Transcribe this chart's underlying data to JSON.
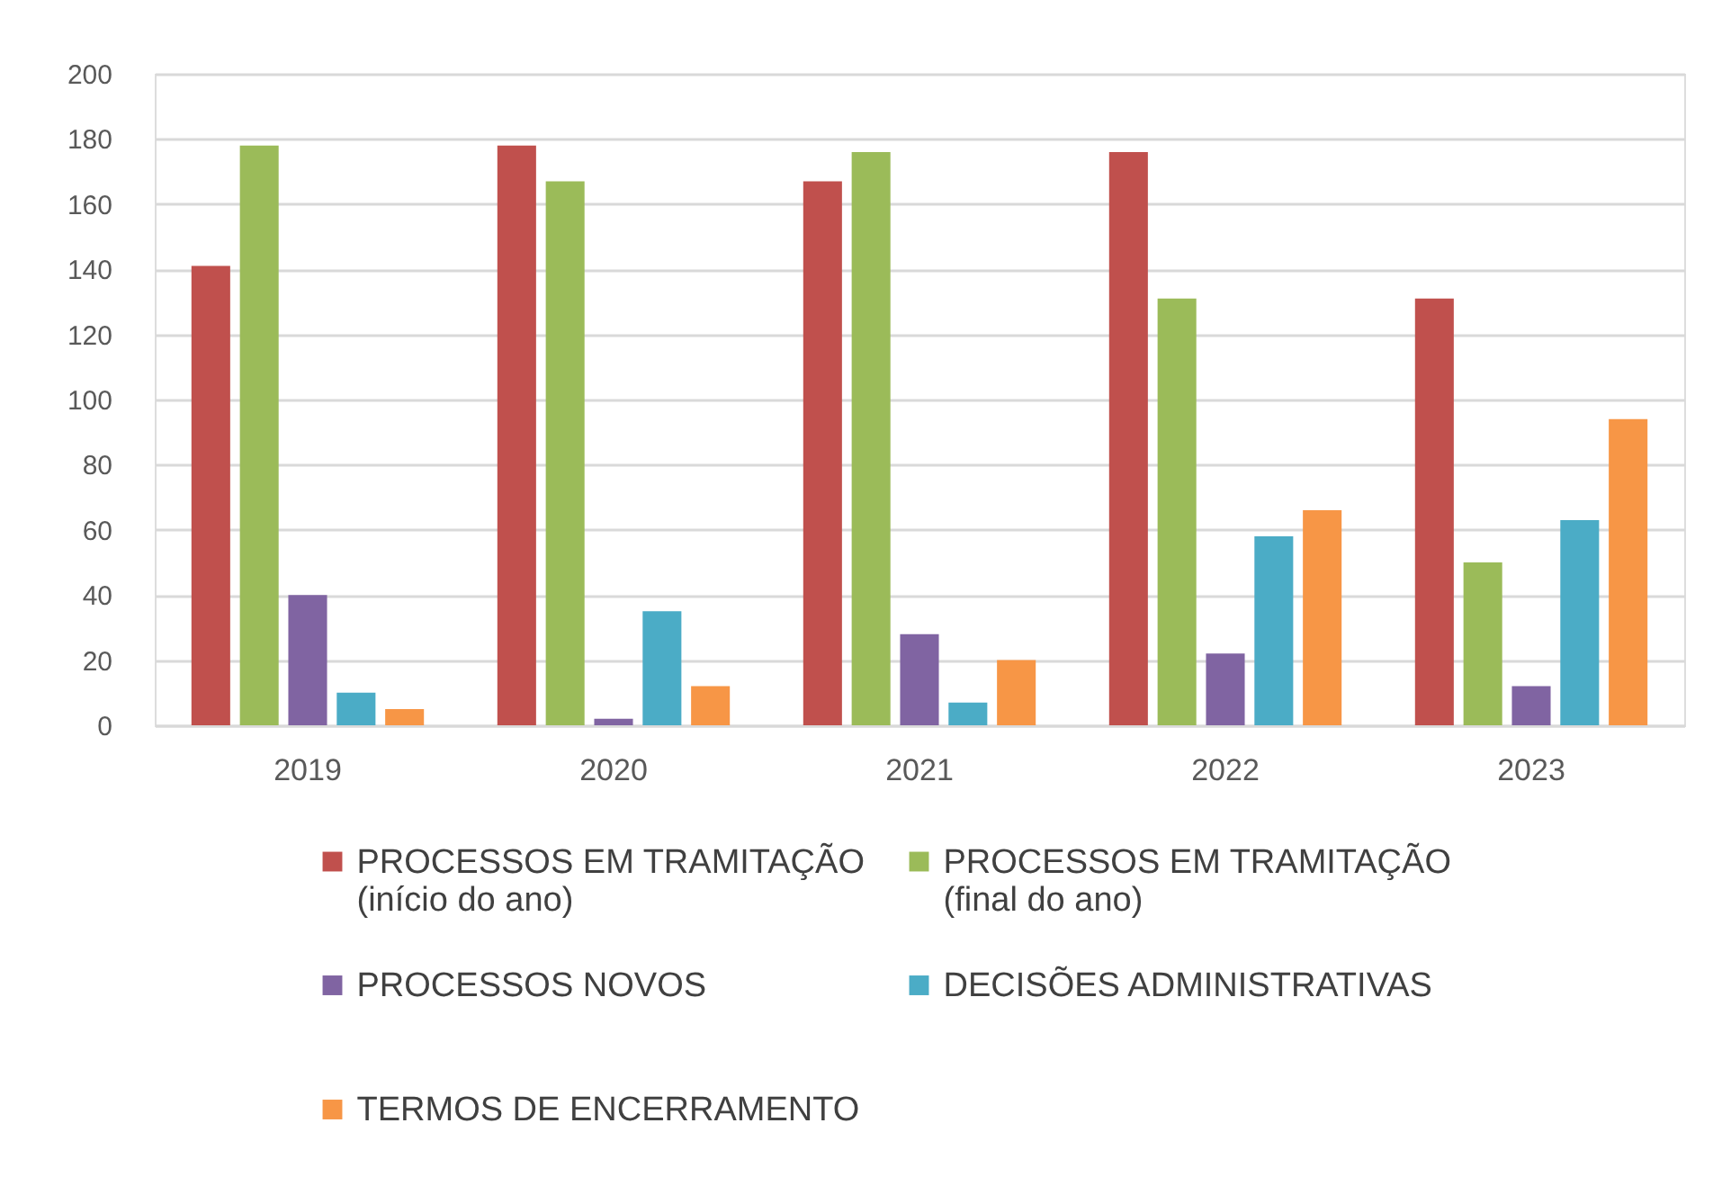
{
  "chart_data": {
    "type": "bar",
    "categories": [
      "2019",
      "2020",
      "2021",
      "2022",
      "2023"
    ],
    "series": [
      {
        "name": "PROCESSOS EM TRAMITAÇÃO (início do ano)",
        "color": "#c0504d",
        "values": [
          141,
          178,
          167,
          176,
          131
        ]
      },
      {
        "name": "PROCESSOS EM TRAMITAÇÃO (final do ano)",
        "color": "#9bbb59",
        "values": [
          178,
          167,
          176,
          131,
          50
        ]
      },
      {
        "name": "PROCESSOS NOVOS",
        "color": "#8064a2",
        "values": [
          40,
          2,
          28,
          22,
          12
        ]
      },
      {
        "name": "DECISÕES ADMINISTRATIVAS",
        "color": "#4bacc6",
        "values": [
          10,
          35,
          7,
          58,
          63
        ]
      },
      {
        "name": "TERMOS DE ENCERRAMENTO",
        "color": "#f79646",
        "values": [
          5,
          12,
          20,
          66,
          94
        ]
      }
    ],
    "ylim": [
      0,
      200
    ],
    "yticks": [
      0,
      20,
      40,
      60,
      80,
      100,
      120,
      140,
      160,
      180,
      200
    ],
    "grid": "y",
    "legend": "bottom"
  }
}
